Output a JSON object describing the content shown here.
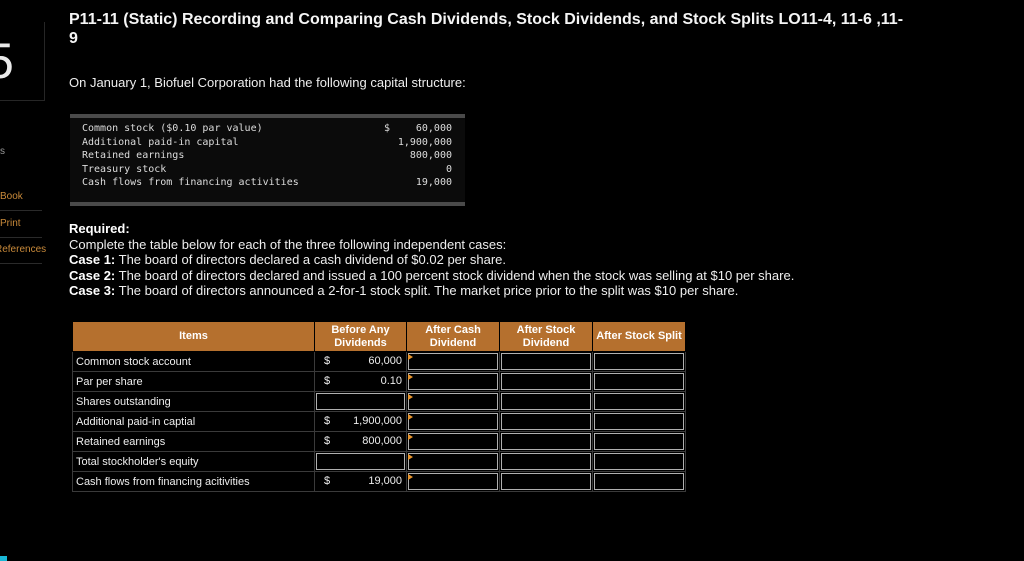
{
  "sidebar": {
    "question_number": "5",
    "truncated_label": "s",
    "links": [
      "Book",
      "Print",
      "References"
    ]
  },
  "problem": {
    "title": "P11-11 (Static) Recording and Comparing Cash Dividends, Stock Dividends, and Stock Splits LO11-4, 11-6 ,11-9",
    "intro": "On January 1, Biofuel Corporation had the following capital structure:"
  },
  "capital_structure": [
    {
      "label": "Common stock ($0.10 par value)",
      "dollar": "$",
      "amount": "60,000"
    },
    {
      "label": "Additional paid-in capital",
      "dollar": "",
      "amount": "1,900,000"
    },
    {
      "label": "Retained earnings",
      "dollar": "",
      "amount": "800,000"
    },
    {
      "label": "Treasury stock",
      "dollar": "",
      "amount": "0"
    },
    {
      "label": "Cash flows from financing activities",
      "dollar": "",
      "amount": "19,000"
    }
  ],
  "required": {
    "heading": "Required:",
    "instruction": "Complete the table below for each of the three following independent cases:",
    "cases": [
      {
        "label": "Case 1:",
        "text": "The board of directors declared a cash dividend of $0.02 per share."
      },
      {
        "label": "Case 2:",
        "text": "The board of directors declared and issued a 100 percent stock dividend when the stock was selling at $10 per share."
      },
      {
        "label": "Case 3:",
        "text": "The board of directors announced a 2-for-1 stock split. The market price prior to the split was $10 per share."
      }
    ]
  },
  "table": {
    "headers": [
      "Items",
      "Before Any Dividends",
      "After Cash Dividend",
      "After Stock Dividend",
      "After Stock Split"
    ],
    "rows": [
      {
        "item": "Common stock account",
        "dollar": "$",
        "value": "60,000"
      },
      {
        "item": "Par per share",
        "dollar": "$",
        "value": "0.10"
      },
      {
        "item": "Shares outstanding",
        "dollar": "",
        "value": ""
      },
      {
        "item": "Additional paid-in captial",
        "dollar": "$",
        "value": "1,900,000"
      },
      {
        "item": "Retained earnings",
        "dollar": "$",
        "value": "800,000"
      },
      {
        "item": "Total stockholder's equity",
        "dollar": "",
        "value": ""
      },
      {
        "item": "Cash flows from financing acitivities",
        "dollar": "$",
        "value": "19,000"
      }
    ]
  },
  "colors": {
    "header_bg": "#b5702e",
    "flag": "#e8962e",
    "link": "#c98a3a"
  }
}
